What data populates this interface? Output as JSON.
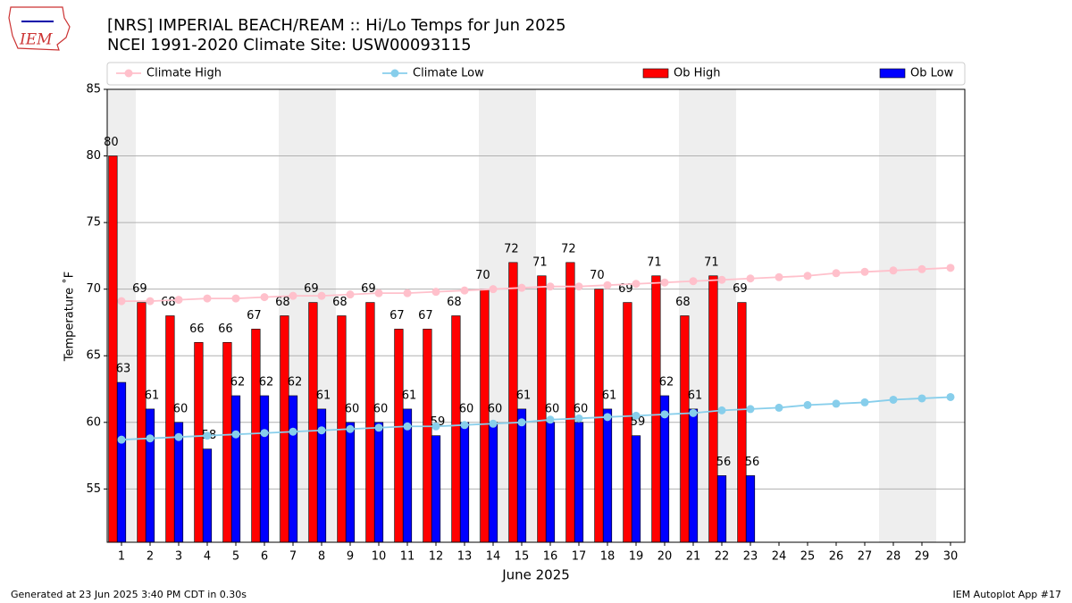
{
  "logo_text": "IEM",
  "footer_left": "Generated at 23 Jun 2025 3:40 PM CDT in 0.30s",
  "footer_right": "IEM Autoplot App #17",
  "chart_data": {
    "type": "bar",
    "title": "[NRS] IMPERIAL BEACH/REAM :: Hi/Lo Temps for Jun 2025",
    "subtitle": "NCEI 1991-2020 Climate Site: USW00093115",
    "x_label": "June 2025",
    "y_label": "Temperature ˚F",
    "x": [
      1,
      2,
      3,
      4,
      5,
      6,
      7,
      8,
      9,
      10,
      11,
      12,
      13,
      14,
      15,
      16,
      17,
      18,
      19,
      20,
      21,
      22,
      23,
      24,
      25,
      26,
      27,
      28,
      29,
      30
    ],
    "xlim": [
      0.5,
      30.5
    ],
    "xticks": [
      1,
      2,
      3,
      4,
      5,
      6,
      7,
      8,
      9,
      10,
      11,
      12,
      13,
      14,
      15,
      16,
      17,
      18,
      19,
      20,
      21,
      22,
      23,
      24,
      25,
      26,
      27,
      28,
      29,
      30
    ],
    "ylim": [
      51,
      85
    ],
    "yticks": [
      55,
      60,
      65,
      70,
      75,
      80,
      85
    ],
    "grid": true,
    "series": [
      {
        "name": "Climate High",
        "type": "line",
        "color": "#ffc0cb",
        "values": [
          69.1,
          69.1,
          69.2,
          69.3,
          69.3,
          69.4,
          69.5,
          69.5,
          69.6,
          69.7,
          69.7,
          69.8,
          69.9,
          70.0,
          70.1,
          70.2,
          70.2,
          70.3,
          70.4,
          70.5,
          70.6,
          70.7,
          70.8,
          70.9,
          71.0,
          71.2,
          71.3,
          71.4,
          71.5,
          71.6
        ]
      },
      {
        "name": "Climate Low",
        "type": "line",
        "color": "#87ceeb",
        "values": [
          58.7,
          58.8,
          58.9,
          59.0,
          59.1,
          59.2,
          59.3,
          59.4,
          59.5,
          59.6,
          59.7,
          59.7,
          59.8,
          59.9,
          60.0,
          60.2,
          60.3,
          60.4,
          60.5,
          60.6,
          60.7,
          60.9,
          61.0,
          61.1,
          61.3,
          61.4,
          61.5,
          61.7,
          61.8,
          61.9
        ]
      },
      {
        "name": "Ob High",
        "type": "bar",
        "color": "#ff0000",
        "values": [
          80,
          69,
          68,
          66,
          66,
          67,
          68,
          69,
          68,
          69,
          67,
          67,
          68,
          70,
          72,
          71,
          72,
          70,
          69,
          71,
          68,
          71,
          69,
          null,
          null,
          null,
          null,
          null,
          null,
          null
        ]
      },
      {
        "name": "Ob Low",
        "type": "bar",
        "color": "#0000ff",
        "values": [
          63,
          61,
          60,
          58,
          62,
          62,
          62,
          61,
          60,
          60,
          61,
          59,
          60,
          60,
          61,
          60,
          60,
          61,
          59,
          62,
          61,
          56,
          56,
          null,
          null,
          null,
          null,
          null,
          null,
          null
        ]
      }
    ]
  }
}
